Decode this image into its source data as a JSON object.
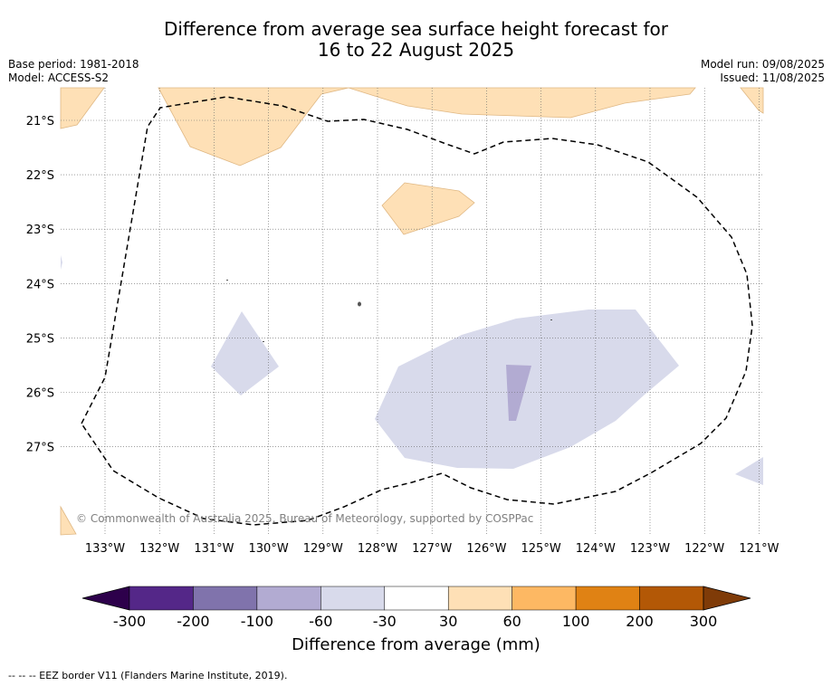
{
  "header": {
    "title_line1": "Difference from average sea surface height forecast for",
    "title_line2": "16 to 22 August 2025",
    "base_period": "Base period: 1981-2018",
    "model": "Model: ACCESS-S2",
    "model_run": "Model run: 09/08/2025",
    "issued": "Issued: 11/08/2025"
  },
  "map": {
    "lon_labels": [
      "133°W",
      "132°W",
      "131°W",
      "130°W",
      "129°W",
      "128°W",
      "127°W",
      "126°W",
      "125°W",
      "124°W",
      "123°W",
      "122°W",
      "121°W"
    ],
    "lat_labels": [
      "21°S",
      "22°S",
      "23°S",
      "24°S",
      "25°S",
      "26°S",
      "27°S"
    ],
    "copyright": "© Commonwealth of Australia 2025, Bureau of Meteorology, supported by COSPPac",
    "colors": {
      "pos_30_60": "#fee0b6",
      "neg_30_60": "#d8daeb",
      "neg_60_100": "#b2abd2",
      "eez_line": "#000000"
    }
  },
  "colorbar": {
    "tick_labels": [
      "-300",
      "-200",
      "-100",
      "-60",
      "-30",
      "30",
      "60",
      "100",
      "200",
      "300"
    ],
    "colors": [
      "#2d004b",
      "#542788",
      "#8073ac",
      "#b2abd2",
      "#d8daeb",
      "#ffffff",
      "#fee0b6",
      "#fdb863",
      "#e08214",
      "#b35806",
      "#7f3b08"
    ],
    "title": "Difference from average (mm)"
  },
  "footnote": "--  --  -- EEZ border V11 (Flanders Marine Institute, 2019)."
}
